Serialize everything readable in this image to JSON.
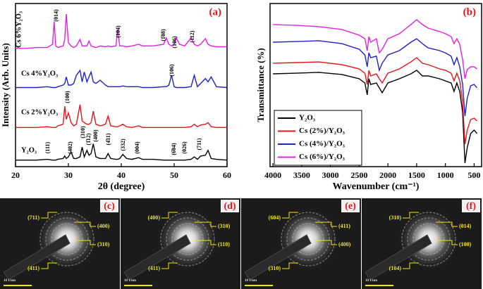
{
  "chart_data": [
    {
      "type": "line",
      "panel": "(a)",
      "xlabel": "2θ (degree)",
      "ylabel": "Intensity (Arb. Units)",
      "xlim": [
        20,
        60
      ],
      "xticks": [
        20,
        30,
        40,
        50,
        60
      ],
      "ylim": [
        0,
        100
      ],
      "x": [
        20,
        22,
        24,
        26,
        27,
        27.3,
        27.6,
        28,
        29,
        29.3,
        29.6,
        30,
        30.5,
        31,
        31.5,
        32.2,
        32.6,
        33,
        33.5,
        33.9,
        34.3,
        34.7,
        35.2,
        36,
        37,
        37.5,
        38,
        39,
        39.3,
        39.7,
        40.3,
        41,
        42,
        43.3,
        44,
        46,
        48,
        48.5,
        49,
        49.5,
        50,
        50.4,
        51,
        52,
        53.2,
        53.8,
        54.4,
        55,
        55.9,
        56.4,
        57,
        58,
        60
      ],
      "series": [
        {
          "name": "Y₂O₃",
          "color": "#000000",
          "values": [
            4,
            4,
            4,
            4.5,
            4,
            4,
            4,
            4.5,
            5,
            6.5,
            5,
            6,
            9,
            5,
            5,
            6,
            12,
            6,
            10,
            7,
            8,
            14,
            6,
            5,
            5,
            8,
            5,
            4.5,
            4.5,
            5,
            7.5,
            5,
            4.5,
            5.5,
            4.5,
            4.5,
            4,
            4,
            4,
            4,
            4,
            4,
            4,
            4,
            4.5,
            6,
            4.5,
            6.5,
            7,
            10,
            5,
            4.5,
            4
          ]
        },
        {
          "name": "Cs 2%Y₂O₃",
          "color": "#e8131b",
          "values": [
            24,
            24,
            24,
            24.5,
            24,
            24,
            24,
            25,
            26,
            37,
            29,
            33,
            27,
            25,
            26,
            38,
            28,
            27,
            26,
            26,
            27,
            34,
            26,
            25,
            26,
            31,
            25,
            24.5,
            24.5,
            25,
            26,
            24.5,
            24,
            25,
            24,
            24,
            24,
            24,
            24,
            24,
            24,
            24,
            24,
            24,
            24.5,
            26,
            24.5,
            25.5,
            26,
            27,
            24.5,
            24,
            24
          ]
        },
        {
          "name": "Cs 4%Y₂O₃",
          "color": "#1f22c8",
          "values": [
            48.5,
            48.5,
            48.5,
            49,
            48.5,
            48.5,
            48.5,
            49,
            50,
            51,
            55,
            50,
            50,
            51,
            56,
            59,
            52,
            58,
            52,
            55,
            58,
            52,
            51,
            53,
            50,
            49,
            49,
            49,
            49,
            49,
            49.5,
            49,
            49,
            49,
            48.5,
            48.5,
            49,
            49,
            50,
            56,
            49,
            48.5,
            48.5,
            48.5,
            49,
            56,
            49,
            51,
            54,
            52,
            55,
            49,
            48.5
          ]
        },
        {
          "name": "Cs 6%Y₂O₃",
          "color": "#e81ee8",
          "values": [
            72.5,
            72.5,
            73,
            73,
            75,
            89,
            74,
            73,
            74,
            78,
            93.5,
            76,
            74,
            73,
            74,
            78,
            74,
            74,
            74,
            77,
            74,
            73.5,
            73,
            74,
            73.5,
            74,
            73.5,
            74,
            84,
            74,
            74,
            73.5,
            74,
            75,
            74,
            74,
            75,
            79,
            75,
            74,
            75,
            79,
            75,
            74,
            79,
            75,
            74,
            75,
            78.5,
            75,
            74,
            73.5,
            73.5
          ]
        }
      ],
      "annotations": [
        "(014)",
        "(104)",
        "(1̄08)",
        "(106)",
        "(112)",
        "(106)",
        "(100)",
        "(111)",
        "(402)",
        "(310)",
        "(1̄12)",
        "(400)",
        "(4̄11)",
        "(332)",
        "(004)",
        "(6̄04)",
        "(026)",
        "(711)"
      ]
    },
    {
      "type": "line",
      "panel": "(b)",
      "xlabel": "Wavenumber (cm⁻¹)",
      "ylabel": "Transmittance (%)",
      "xlim": [
        4050,
        370
      ],
      "xticks": [
        4000,
        3500,
        3000,
        2500,
        2000,
        1500,
        1000,
        500
      ],
      "ylim": [
        0,
        100
      ],
      "legend": "lower left",
      "x": [
        4000,
        3600,
        3200,
        2800,
        2500,
        2400,
        2360,
        2330,
        2300,
        2200,
        2150,
        2100,
        2000,
        1800,
        1600,
        1500,
        1400,
        1300,
        1100,
        1000,
        900,
        850,
        800,
        750,
        700,
        660,
        620,
        560,
        500,
        450
      ],
      "series": [
        {
          "name": "Y₂O₃",
          "color": "#000000",
          "values": [
            56.9,
            57.3,
            57.8,
            56.5,
            53.9,
            51.3,
            44,
            53.9,
            50.4,
            51.3,
            48.3,
            45.3,
            51.3,
            53.9,
            56.9,
            59.1,
            55.6,
            55.6,
            53.9,
            52.6,
            51.3,
            46.1,
            51.3,
            46.1,
            33.2,
            2.2,
            11.6,
            20.3,
            22.4,
            20.3
          ]
        },
        {
          "name": "Cs (2%)/Y₂O₃",
          "color": "#e8131b",
          "values": [
            63.4,
            63.8,
            64.2,
            62.5,
            59.9,
            57.3,
            50.4,
            59,
            55.6,
            56.9,
            53.9,
            51.3,
            57.3,
            59.9,
            64.2,
            66.8,
            63.4,
            62.5,
            59.9,
            59.1,
            57.3,
            52.6,
            57.3,
            52.6,
            39.7,
            13.8,
            22.4,
            28.9,
            29.7,
            28
          ]
        },
        {
          "name": "Cs (4%)/Y₂O₃",
          "color": "#1f22c8",
          "values": [
            76.3,
            76.7,
            77.2,
            75.4,
            72,
            68.5,
            61.2,
            69.8,
            66.8,
            67.7,
            59.1,
            63.4,
            68.5,
            71.1,
            76.3,
            78.4,
            75.4,
            72.8,
            71.1,
            69.8,
            67.7,
            62.5,
            66.8,
            61.2,
            50.4,
            31,
            41.8,
            49.6,
            50.4,
            48.3
          ]
        },
        {
          "name": "Cs (6%)/Y₂O₃",
          "color": "#e81ee8",
          "values": [
            87.1,
            86.6,
            85.8,
            84.1,
            80.6,
            78.4,
            71.1,
            79.7,
            76.3,
            78.4,
            69.8,
            72,
            78.4,
            81.5,
            87.1,
            90.1,
            87.1,
            84.9,
            82.8,
            81.5,
            79.7,
            75.4,
            78.4,
            75,
            65.5,
            53.9,
            59.5,
            61.2,
            61.2,
            59.9
          ]
        }
      ]
    }
  ],
  "saed_panels": [
    {
      "label": "(c)",
      "left": [
        "(711)",
        "(411)"
      ],
      "right": [
        "(400)",
        "(310)"
      ],
      "scale": "10 1/nm"
    },
    {
      "label": "(d)",
      "left": [
        "(400)",
        "(411)"
      ],
      "right": [
        "(310)",
        "(110)"
      ],
      "scale": "10 1/nm"
    },
    {
      "label": "(e)",
      "left": [
        "(604)",
        "(310)"
      ],
      "right": [
        "(411)",
        "(400)"
      ],
      "scale": "10 1/nm"
    },
    {
      "label": "(f)",
      "left": [
        "(310)",
        "(104)"
      ],
      "right": [
        "(014)",
        "(100)"
      ],
      "scale": "10 1/nm"
    }
  ]
}
